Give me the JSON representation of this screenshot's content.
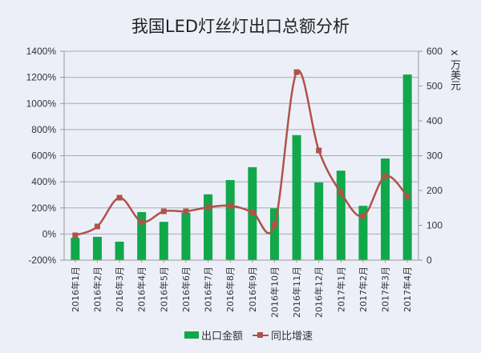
{
  "chart_data": {
    "type": "bar",
    "title": "我国LED灯丝灯出口总额分析",
    "categories": [
      "2016年1月",
      "2016年2月",
      "2016年3月",
      "2016年4月",
      "2016年5月",
      "2016年6月",
      "2016年7月",
      "2016年8月",
      "2016年9月",
      "2016年10月",
      "2016年11月",
      "2016年12月",
      "2017年1月",
      "2017年2月",
      "2017年3月",
      "2017年4月"
    ],
    "series": [
      {
        "name": "出口金额",
        "type": "bar",
        "axis": "right",
        "color": "#10a84a",
        "values": [
          64,
          67,
          53,
          138,
          110,
          136,
          189,
          230,
          267,
          149,
          359,
          223,
          257,
          156,
          292,
          533
        ]
      },
      {
        "name": "同比增速",
        "type": "line",
        "axis": "left",
        "color": "#b0524a",
        "unit": "%",
        "values": [
          -10,
          58,
          278,
          94,
          174,
          174,
          205,
          217,
          168,
          70,
          1240,
          640,
          315,
          137,
          444,
          290
        ]
      }
    ],
    "xlabel": "",
    "ylabel_left": "",
    "ylabel_right": "x 万美元",
    "ylim_left": [
      -200,
      1400
    ],
    "ylim_right": [
      0,
      600
    ],
    "yticks_left": [
      "-200%",
      "0%",
      "200%",
      "400%",
      "600%",
      "800%",
      "1000%",
      "1200%",
      "1400%"
    ],
    "yticks_right": [
      "0",
      "100",
      "200",
      "300",
      "400",
      "500",
      "600"
    ],
    "grid": true,
    "legend_position": "bottom"
  },
  "legend": {
    "bar_label": "出口金额",
    "line_label": "同比增速"
  }
}
